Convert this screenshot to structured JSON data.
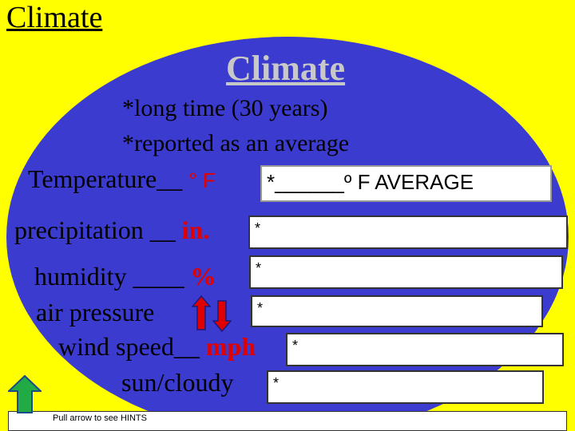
{
  "corner_title": "Climate",
  "main_title": "Climate",
  "notes": [
    "*long time (30 years)",
    "*reported as an average"
  ],
  "rows": {
    "temperature": {
      "label": "Temperature__",
      "unit": "° F",
      "answer": "*______º F   AVERAGE"
    },
    "precipitation": {
      "label": "precipitation __",
      "unit": "in.",
      "answer": "*"
    },
    "humidity": {
      "label": "humidity ____",
      "unit": "%",
      "answer": "*"
    },
    "air_pressure": {
      "label": "air pressure",
      "answer": "*"
    },
    "wind_speed": {
      "label": "wind speed__",
      "unit": "mph",
      "answer": "*"
    },
    "sun_cloudy": {
      "label": "sun/cloudy",
      "answer": "*"
    }
  },
  "hint": "Pull arrow to see HINTS",
  "colors": {
    "background": "#ffff00",
    "oval": "#3b3bd0",
    "unit": "#e00000",
    "arrow_green": "#22aa44"
  }
}
